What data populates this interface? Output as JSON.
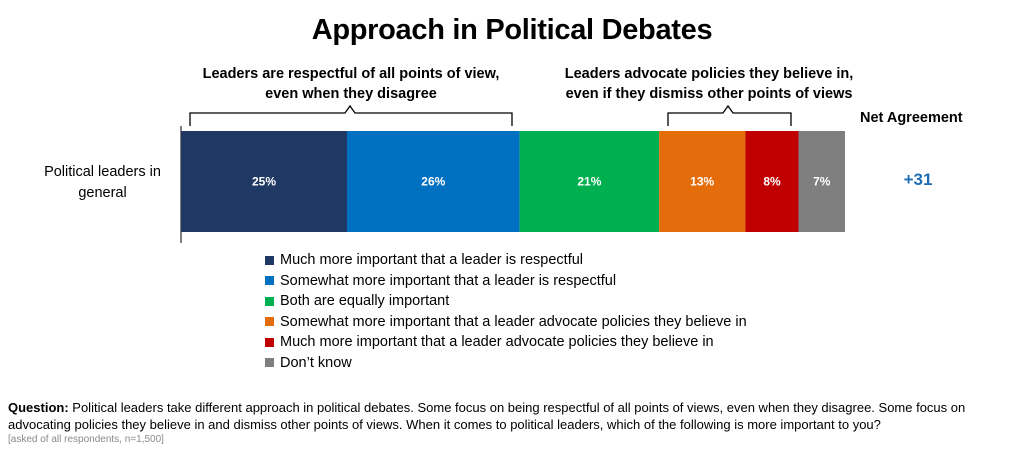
{
  "title": "Approach in Political Debates",
  "left_bracket_label": "Leaders are respectful of all points of view, even when they disagree",
  "right_bracket_label": "Leaders advocate policies they believe in, even if they dismiss other points of views",
  "net_agreement_header": "Net Agreement",
  "chart_data": {
    "type": "bar",
    "orientation": "horizontal",
    "stacked": true,
    "categories": [
      "Political leaders in general"
    ],
    "series": [
      {
        "name": "Much more important that a leader is respectful",
        "values": [
          25
        ],
        "label": "25%",
        "color": "#1f3864"
      },
      {
        "name": "Somewhat more important that a leader is respectful",
        "values": [
          26
        ],
        "label": "26%",
        "color": "#0070c0"
      },
      {
        "name": "Both are equally important",
        "values": [
          21
        ],
        "label": "21%",
        "color": "#00b050"
      },
      {
        "name": "Somewhat more important that a leader advocate policies they believe in",
        "values": [
          13
        ],
        "label": "13%",
        "color": "#e46c0a"
      },
      {
        "name": "Much more important that a leader advocate policies they believe in",
        "values": [
          8
        ],
        "label": "8%",
        "color": "#c00000"
      },
      {
        "name": "Don’t know",
        "values": [
          7
        ],
        "label": "7%",
        "color": "#7f7f7f"
      }
    ],
    "net_agreement": [
      "+31"
    ],
    "legend_position": "bottom",
    "grid": false
  },
  "footer": {
    "question_label": "Question:",
    "question_text": " Political leaders take different approach in political debates. Some focus on being respectful of all points of views, even when they disagree. Some focus on advocating policies they believe in and dismiss other points of views. When it comes to political leaders, which of the following is more important to you?",
    "note": "[asked of all respondents, n=1,500]"
  }
}
